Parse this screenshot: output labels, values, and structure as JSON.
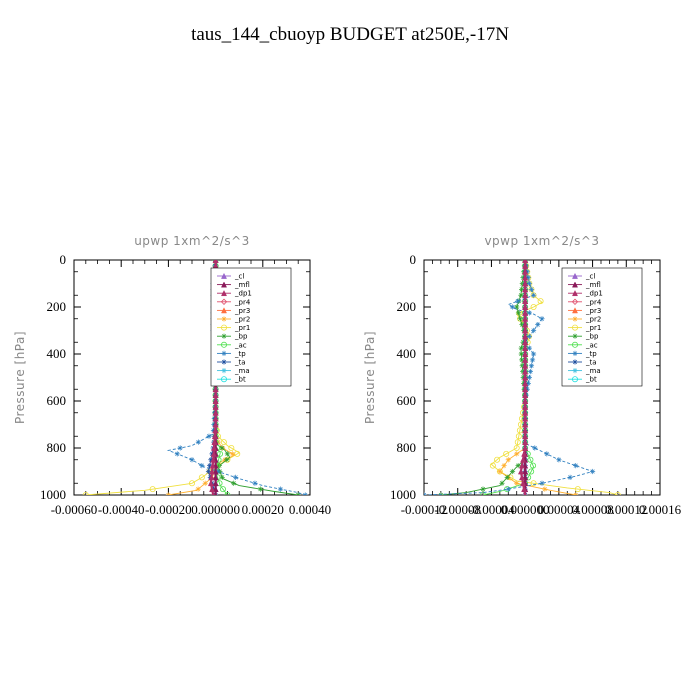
{
  "figure": {
    "title": "taus_144_cbuoyp  BUDGET at250E,-17N"
  },
  "legend_entries": [
    {
      "name": "_cl",
      "color": "#9966cc"
    },
    {
      "name": "_mfl",
      "color": "#8b1a5a"
    },
    {
      "name": "_dp1",
      "color": "#b0306a"
    },
    {
      "name": "_pr4",
      "color": "#e0506e"
    },
    {
      "name": "_pr3",
      "color": "#ff7040"
    },
    {
      "name": "_pr2",
      "color": "#ffb030"
    },
    {
      "name": "_pr1",
      "color": "#f0e040"
    },
    {
      "name": "_bp",
      "color": "#30a030"
    },
    {
      "name": "_ac",
      "color": "#50e050"
    },
    {
      "name": "_tp",
      "color": "#3080c0"
    },
    {
      "name": "_ta",
      "color": "#2050a0"
    },
    {
      "name": "_ma",
      "color": "#40c0e0"
    },
    {
      "name": "_bt",
      "color": "#20e0e0"
    }
  ],
  "chart_data": [
    {
      "type": "line",
      "title": "upwp   1xm^2/s^3",
      "ylabel": "Pressure [hPa]",
      "xlabel": "",
      "xlim": [
        -0.0006,
        0.0004
      ],
      "ylim": [
        1000,
        0
      ],
      "xticks": [
        -0.0006,
        -0.0004,
        -0.0002,
        0.0,
        0.0002,
        0.0004
      ],
      "xtick_labels": [
        "-0.00060",
        "-0.00040",
        "-0.00020",
        "0.000000",
        "0.00020",
        "0.00040"
      ],
      "yticks": [
        0,
        200,
        400,
        600,
        800,
        1000
      ],
      "ytick_labels": [
        "0",
        "200",
        "400",
        "600",
        "800",
        "1000"
      ],
      "legend_position": "top-right",
      "series": [
        {
          "name": "_pr1",
          "color": "#f0e040",
          "points": [
            [
              0,
              0
            ],
            [
              0,
              700
            ],
            [
              1e-05,
              750
            ],
            [
              5e-05,
              790
            ],
            [
              0.0001,
              820
            ],
            [
              5e-05,
              850
            ],
            [
              0,
              880
            ],
            [
              -5e-05,
              920
            ],
            [
              -0.0001,
              950
            ],
            [
              -0.0003,
              980
            ],
            [
              -0.00055,
              1000
            ]
          ]
        },
        {
          "name": "_pr2",
          "color": "#ffb030",
          "points": [
            [
              0,
              0
            ],
            [
              0,
              760
            ],
            [
              3e-05,
              800
            ],
            [
              8e-05,
              830
            ],
            [
              2e-05,
              860
            ],
            [
              -2e-05,
              930
            ],
            [
              -8e-05,
              980
            ],
            [
              -0.0002,
              1000
            ]
          ]
        },
        {
          "name": "_bp",
          "color": "#30a030",
          "points": [
            [
              0,
              0
            ],
            [
              0,
              780
            ],
            [
              4e-05,
              810
            ],
            [
              6e-05,
              840
            ],
            [
              1e-05,
              880
            ],
            [
              3e-05,
              930
            ],
            [
              0.0001,
              960
            ],
            [
              0.00025,
              985
            ],
            [
              0.00035,
              1000
            ]
          ]
        },
        {
          "name": "_ac",
          "color": "#50e050",
          "points": [
            [
              0,
              0
            ],
            [
              0,
              790
            ],
            [
              2e-05,
              820
            ],
            [
              1e-05,
              860
            ],
            [
              0,
              900
            ],
            [
              2e-05,
              960
            ],
            [
              5e-05,
              1000
            ]
          ]
        },
        {
          "name": "_tp",
          "color": "#3080c0",
          "points": [
            [
              0,
              0
            ],
            [
              -1e-05,
              100
            ],
            [
              -1e-05,
              200
            ],
            [
              -1e-05,
              300
            ],
            [
              0,
              400
            ],
            [
              0,
              600
            ],
            [
              -1e-05,
              740
            ],
            [
              -0.0001,
              790
            ],
            [
              -0.0002,
              810
            ],
            [
              -0.00015,
              830
            ],
            [
              -0.0001,
              850
            ],
            [
              -5e-05,
              880
            ],
            [
              0.0001,
              930
            ],
            [
              0.0002,
              960
            ],
            [
              0.00035,
              990
            ],
            [
              0.00038,
              1000
            ]
          ]
        },
        {
          "name": "_ta",
          "color": "#2050a0",
          "points": [
            [
              0,
              0
            ],
            [
              0,
              500
            ],
            [
              0,
              700
            ],
            [
              -1e-05,
              800
            ],
            [
              -3e-05,
              900
            ],
            [
              0,
              1000
            ]
          ]
        },
        {
          "name": "_cl",
          "color": "#9966cc",
          "points": [
            [
              0,
              0
            ],
            [
              0,
              1000
            ]
          ]
        },
        {
          "name": "_mfl",
          "color": "#8b1a5a",
          "points": [
            [
              0,
              0
            ],
            [
              0,
              1000
            ]
          ]
        },
        {
          "name": "_dp1",
          "color": "#b0306a",
          "points": [
            [
              0,
              0
            ],
            [
              0,
              700
            ],
            [
              -1e-05,
              850
            ],
            [
              -2e-05,
              950
            ],
            [
              -1e-05,
              1000
            ]
          ]
        }
      ]
    },
    {
      "type": "line",
      "title": "vpwp   1xm^2/s^3",
      "ylabel": "Pressure [hPa]",
      "xlabel": "",
      "xlim": [
        -0.00012,
        0.00016
      ],
      "ylim": [
        1000,
        0
      ],
      "xticks": [
        -0.00012,
        -8e-05,
        -4e-05,
        0.0,
        4e-05,
        8e-05,
        0.00012,
        0.00016
      ],
      "xtick_labels": [
        "-0.00012",
        "-0.00008",
        "-0.00004",
        "0.000000",
        "0.00004",
        "0.00008",
        "0.00012",
        "0.00016"
      ],
      "yticks": [
        0,
        200,
        400,
        600,
        800,
        1000
      ],
      "ytick_labels": [
        "0",
        "200",
        "400",
        "600",
        "800",
        "1000"
      ],
      "legend_position": "top-right",
      "series": [
        {
          "name": "_pr1",
          "color": "#f0e040",
          "points": [
            [
              0,
              0
            ],
            [
              5e-06,
              100
            ],
            [
              1e-05,
              150
            ],
            [
              2e-05,
              180
            ],
            [
              1e-05,
              200
            ],
            [
              -1e-05,
              230
            ],
            [
              0,
              280
            ],
            [
              5e-06,
              330
            ],
            [
              0,
              380
            ],
            [
              0,
              600
            ],
            [
              -1e-05,
              800
            ],
            [
              -3e-05,
              840
            ],
            [
              -4e-05,
              870
            ],
            [
              -3e-05,
              900
            ],
            [
              -1e-05,
              940
            ],
            [
              5e-05,
              970
            ],
            [
              0.0001,
              990
            ],
            [
              0.00011,
              1000
            ]
          ]
        },
        {
          "name": "_pr2",
          "color": "#ffb030",
          "points": [
            [
              0,
              0
            ],
            [
              0,
              800
            ],
            [
              -2e-05,
              850
            ],
            [
              -3e-05,
              900
            ],
            [
              -1e-05,
              950
            ],
            [
              3e-05,
              980
            ],
            [
              6e-05,
              1000
            ]
          ]
        },
        {
          "name": "_bp",
          "color": "#30a030",
          "points": [
            [
              0,
              0
            ],
            [
              -5e-06,
              150
            ],
            [
              -1e-05,
              200
            ],
            [
              -5e-06,
              260
            ],
            [
              0,
              320
            ],
            [
              -5e-06,
              380
            ],
            [
              0,
              600
            ],
            [
              0,
              850
            ],
            [
              -1e-05,
              880
            ],
            [
              -2e-05,
              920
            ],
            [
              -3e-05,
              960
            ],
            [
              -7e-05,
              990
            ],
            [
              -0.0001,
              1000
            ]
          ]
        },
        {
          "name": "_ac",
          "color": "#50e050",
          "points": [
            [
              0,
              0
            ],
            [
              0,
              800
            ],
            [
              1e-05,
              880
            ],
            [
              0,
              950
            ],
            [
              -3e-05,
              985
            ],
            [
              -5e-05,
              1000
            ]
          ]
        },
        {
          "name": "_tp",
          "color": "#3080c0",
          "points": [
            [
              0,
              0
            ],
            [
              5e-06,
              100
            ],
            [
              1e-05,
              150
            ],
            [
              -2e-05,
              190
            ],
            [
              -1e-05,
              210
            ],
            [
              1e-05,
              230
            ],
            [
              2e-05,
              250
            ],
            [
              1e-05,
              300
            ],
            [
              0,
              350
            ],
            [
              1e-05,
              400
            ],
            [
              0,
              600
            ],
            [
              0,
              780
            ],
            [
              4e-05,
              850
            ],
            [
              8e-05,
              900
            ],
            [
              6e-05,
              920
            ],
            [
              2e-05,
              950
            ],
            [
              -2e-05,
              975
            ],
            [
              -5e-05,
              990
            ],
            [
              -0.00012,
              1000
            ]
          ]
        },
        {
          "name": "_ta",
          "color": "#2050a0",
          "points": [
            [
              0,
              0
            ],
            [
              0,
              1000
            ]
          ]
        },
        {
          "name": "_cl",
          "color": "#9966cc",
          "points": [
            [
              0,
              0
            ],
            [
              0,
              1000
            ]
          ]
        },
        {
          "name": "_mfl",
          "color": "#8b1a5a",
          "points": [
            [
              0,
              0
            ],
            [
              0,
              1000
            ]
          ]
        },
        {
          "name": "_dp1",
          "color": "#b0306a",
          "points": [
            [
              0,
              0
            ],
            [
              0,
              800
            ],
            [
              -5e-06,
              900
            ],
            [
              0,
              1000
            ]
          ]
        }
      ]
    }
  ]
}
